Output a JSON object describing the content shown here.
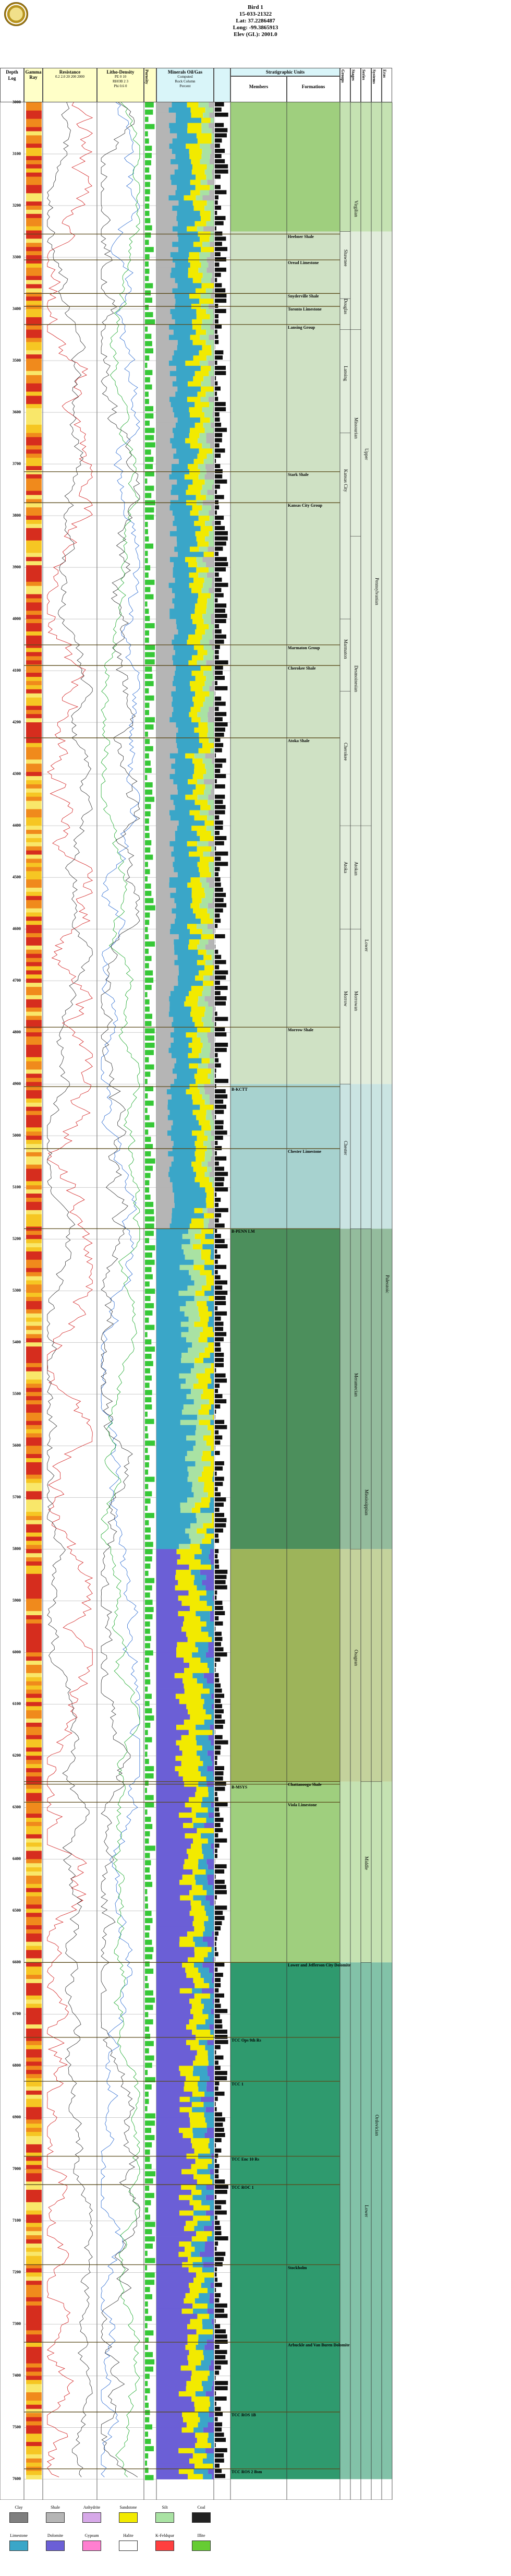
{
  "header": {
    "well_name": "Bird 1",
    "api": "15-033-21322",
    "lat": "Lat: 37.2286487",
    "long": "Long: -99.3865913",
    "elev": "Elev (GL): 2001.0"
  },
  "columns": {
    "depth": "Depth",
    "log": "Log",
    "gamma": "Gamma Ray",
    "resistance": "Resistance",
    "resistance_scale": [
      "0.2",
      "2.0",
      "20",
      "200",
      "2000"
    ],
    "litho_density": "Litho-Density",
    "litho_scale": [
      "PE",
      "0",
      "10",
      "RHOB",
      "2",
      "3",
      "Phi",
      "0.6",
      "0"
    ],
    "porosity": "Porosity",
    "mineral_oil": "Minerals Oil/Gas",
    "composite": "Computed",
    "rock_column": "Rock Column",
    "percent": "Percent",
    "strat_units": "Stratigraphic Units",
    "members": "Members",
    "formations": "Formations",
    "groups": "Groups",
    "stages": "Stages",
    "series": "Series",
    "systems": "Systems",
    "eras": "Eras"
  },
  "depths": [
    "3000",
    "3100",
    "3200",
    "3300",
    "3400",
    "3500",
    "3600",
    "3700",
    "3800",
    "3900",
    "4000",
    "4100",
    "4200",
    "4300",
    "4400",
    "4500",
    "4600",
    "4700",
    "4800",
    "4900",
    "5000",
    "5100",
    "5200",
    "5300",
    "5400",
    "5500",
    "5600",
    "5700",
    "5800",
    "5900",
    "6000",
    "6100",
    "6200",
    "6300",
    "6400",
    "6500",
    "6600",
    "6700",
    "6800",
    "6900",
    "7000",
    "7100",
    "7200",
    "7300",
    "7400",
    "7500",
    "7600"
  ],
  "strat_labels": [
    {
      "text": "Heebner Shale",
      "col": "formation",
      "depth": 3255
    },
    {
      "text": "Oread Limestone",
      "col": "formation",
      "depth": 3305
    },
    {
      "text": "Snyderville Shale",
      "col": "formation",
      "depth": 3370
    },
    {
      "text": "Toronto Limestone",
      "col": "formation",
      "depth": 3395
    },
    {
      "text": "Lansing Group",
      "col": "formation",
      "depth": 3430
    },
    {
      "text": "Stark Shale",
      "col": "formation",
      "depth": 3715
    },
    {
      "text": "Kansas City Group",
      "col": "formation",
      "depth": 3775
    },
    {
      "text": "Marmaton Group",
      "col": "formation",
      "depth": 4050
    },
    {
      "text": "Cherokee Shale",
      "col": "formation",
      "depth": 4090
    },
    {
      "text": "Atoka Shale",
      "col": "formation",
      "depth": 4230
    },
    {
      "text": "Morrow Shale",
      "col": "formation",
      "depth": 4790
    },
    {
      "text": "B-KCTT",
      "col": "member",
      "depth": 4905
    },
    {
      "text": "Chester Limestone",
      "col": "formation",
      "depth": 5025
    },
    {
      "text": "B-PENN LM",
      "col": "member",
      "depth": 5180
    },
    {
      "text": "B-MSYS",
      "col": "member",
      "depth": 6255
    },
    {
      "text": "Chattanooga Shale",
      "col": "formation",
      "depth": 6250
    },
    {
      "text": "Viola Limestone",
      "col": "formation",
      "depth": 6290
    },
    {
      "text": "Lower and Jefferson City Dolomite",
      "col": "formation",
      "depth": 6600
    },
    {
      "text": "TCC Ops 9th Rs",
      "col": "member",
      "depth": 6745
    },
    {
      "text": "TCC 1",
      "col": "member",
      "depth": 6830
    },
    {
      "text": "TCC Enc 10 Rs",
      "col": "member",
      "depth": 6975
    },
    {
      "text": "TCC ROC 1",
      "col": "member",
      "depth": 7030
    },
    {
      "text": "Stockholm",
      "col": "formation",
      "depth": 7185
    },
    {
      "text": "Arbuckle and Van Buren Dolomite",
      "col": "formation",
      "depth": 7335
    },
    {
      "text": "TCC ROS 1B",
      "col": "member",
      "depth": 7470
    },
    {
      "text": "TCC ROS 2 Bsm",
      "col": "member",
      "depth": 7580
    }
  ],
  "vertical_labels": [
    {
      "text": "Shawnee",
      "col": 0,
      "from": 3250,
      "to": 3380
    },
    {
      "text": "Douglas",
      "col": 0,
      "from": 3380,
      "to": 3440
    },
    {
      "text": "Lansing",
      "col": 0,
      "from": 3440,
      "to": 3640
    },
    {
      "text": "Kansas City",
      "col": 0,
      "from": 3640,
      "to": 3840
    },
    {
      "text": "Marmaton",
      "col": 0,
      "from": 4000,
      "to": 4140
    },
    {
      "text": "Cherokee",
      "col": 0,
      "from": 4140,
      "to": 4400
    },
    {
      "text": "Atoka",
      "col": 0,
      "from": 4400,
      "to": 4600
    },
    {
      "text": "Morrow",
      "col": 0,
      "from": 4600,
      "to": 4900
    },
    {
      "text": "Chester",
      "col": 0,
      "from": 4900,
      "to": 5180
    },
    {
      "text": "Virgilian",
      "col": 1,
      "from": 3000,
      "to": 3440
    },
    {
      "text": "Missourian",
      "col": 1,
      "from": 3440,
      "to": 3840
    },
    {
      "text": "Desmoinesian",
      "col": 1,
      "from": 3840,
      "to": 4400
    },
    {
      "text": "Atokan",
      "col": 1,
      "from": 4400,
      "to": 4600
    },
    {
      "text": "Morrowan",
      "col": 1,
      "from": 4600,
      "to": 4900
    },
    {
      "text": "Meramecian",
      "col": 1,
      "from": 5180,
      "to": 5800
    },
    {
      "text": "Osagean",
      "col": 1,
      "from": 5800,
      "to": 6250
    },
    {
      "text": "Upper",
      "col": 2,
      "from": 3000,
      "to": 4400
    },
    {
      "text": "Lower",
      "col": 2,
      "from": 4400,
      "to": 4900
    },
    {
      "text": "Mississippian",
      "col": 2,
      "from": 5180,
      "to": 6250
    },
    {
      "text": "Middle",
      "col": 2,
      "from": 6250,
      "to": 6600
    },
    {
      "text": "Lower",
      "col": 2,
      "from": 6600,
      "to": 7600
    },
    {
      "text": "Pennsylvanian",
      "col": 3,
      "from": 3000,
      "to": 4900
    },
    {
      "text": "Ordovician",
      "col": 3,
      "from": 6250,
      "to": 7600
    },
    {
      "text": "Paleozoic",
      "col": 4,
      "from": 3000,
      "to": 7600
    }
  ],
  "legend": [
    {
      "label": "Clay",
      "color": "#7f7f7f"
    },
    {
      "label": "Shale",
      "color": "#b5b5b5"
    },
    {
      "label": "Anhydrite",
      "color": "#d6a8e8"
    },
    {
      "label": "Sandstone",
      "color": "#f2ea00"
    },
    {
      "label": "Silt",
      "color": "#a9e2a3"
    },
    {
      "label": "Coal",
      "color": "#222222"
    },
    {
      "label": "Limestone",
      "color": "#3aa6c8"
    },
    {
      "label": "Dolomite",
      "color": "#6b5fd6"
    },
    {
      "label": "Gypsum",
      "color": "#ff7fd0"
    },
    {
      "label": "Halite",
      "color": "#ffffff"
    },
    {
      "label": "K-Feldspar",
      "color": "#ff3f3f"
    },
    {
      "label": "Illite",
      "color": "#66cc33"
    }
  ],
  "colors": {
    "zone_green": "#9fcf7e",
    "zone_light": "#cfe1c4",
    "zone_teal": "#a7d2cf",
    "zone_dark": "#4c8f5c",
    "zone_olive": "#9db45a",
    "zone_deep": "#2f9a6e"
  }
}
